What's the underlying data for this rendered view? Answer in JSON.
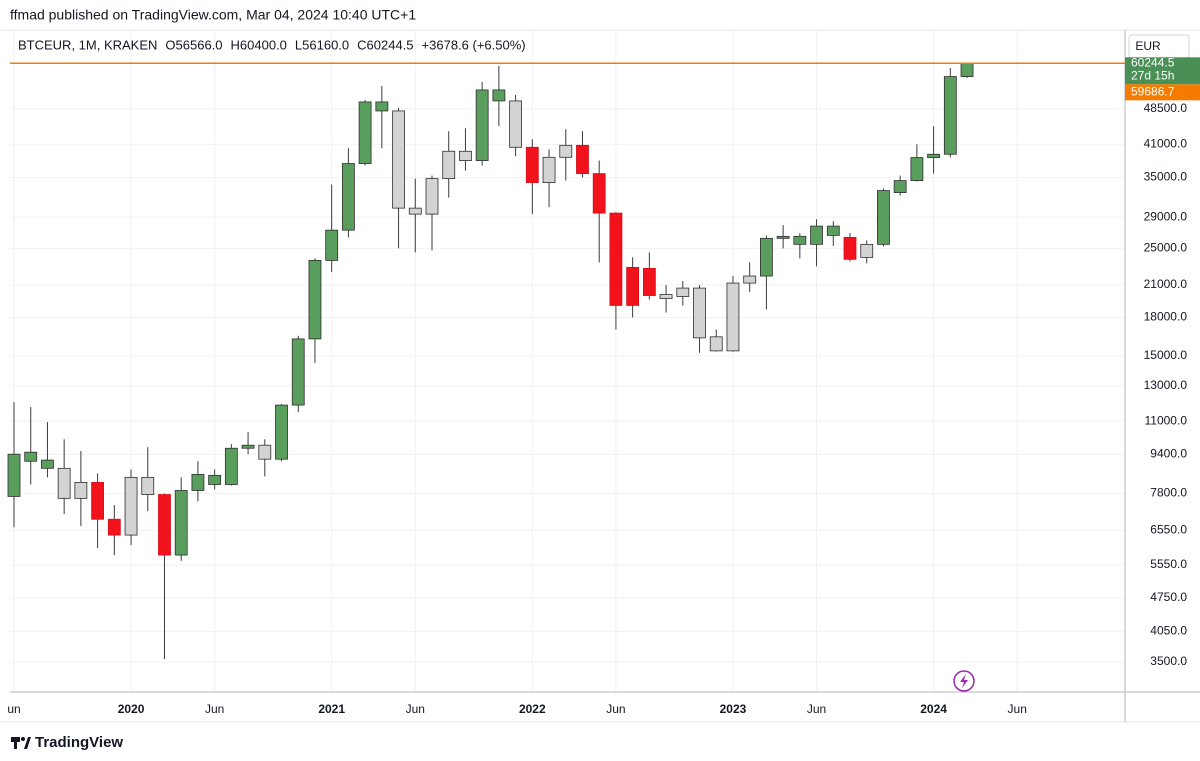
{
  "header": "ffmad published on TradingView.com, Mar 04, 2024 10:40 UTC+1",
  "footer": "TradingView",
  "currency": "EUR",
  "chart_data": {
    "type": "candlestick",
    "legend": [
      "BTCEUR, 1M, KRAKEN",
      "O56566.0",
      "H60400.0",
      "L56160.0",
      "C60244.5",
      "+3678.6 (+6.50%)"
    ],
    "log_scale": true,
    "grid": true,
    "last_price": {
      "value": 60244.5,
      "label": "60244.5",
      "color": "#f57c00"
    },
    "countdown": "27d 15h",
    "marker": {
      "value": 59686.7,
      "label": "59686.7"
    },
    "categories": [
      "2019-06",
      "2019-07",
      "2019-08",
      "2019-09",
      "2019-10",
      "2019-11",
      "2019-12",
      "2020-01",
      "2020-02",
      "2020-03",
      "2020-04",
      "2020-05",
      "2020-06",
      "2020-07",
      "2020-08",
      "2020-09",
      "2020-10",
      "2020-11",
      "2020-12",
      "2021-01",
      "2021-02",
      "2021-03",
      "2021-04",
      "2021-05",
      "2021-06",
      "2021-07",
      "2021-08",
      "2021-09",
      "2021-10",
      "2021-11",
      "2021-12",
      "2022-01",
      "2022-02",
      "2022-03",
      "2022-04",
      "2022-05",
      "2022-06",
      "2022-07",
      "2022-08",
      "2022-09",
      "2022-10",
      "2022-11",
      "2022-12",
      "2023-01",
      "2023-02",
      "2023-03",
      "2023-04",
      "2023-05",
      "2023-06",
      "2023-07",
      "2023-08",
      "2023-09",
      "2023-10",
      "2023-11",
      "2023-12",
      "2024-01",
      "2024-02",
      "2024-03"
    ],
    "open": [
      7690,
      9090,
      8790,
      8790,
      7620,
      8220,
      6900,
      6400,
      8420,
      7760,
      5820,
      7910,
      8140,
      8140,
      9670,
      9810,
      9180,
      11870,
      16260,
      23610,
      27260,
      37410,
      48040,
      48040,
      30270,
      29420,
      34830,
      39660,
      37950,
      50380,
      50380,
      40420,
      34180,
      38540,
      40800,
      35670,
      29560,
      22840,
      22730,
      20080,
      19890,
      20700,
      16420,
      15360,
      21200,
      21920,
      26220,
      25480,
      25480,
      26590,
      26340,
      23950,
      25480,
      32590,
      34500,
      38490,
      39100,
      56566
    ],
    "high": [
      12040,
      11760,
      10950,
      10090,
      9540,
      8580,
      7380,
      8740,
      9720,
      7800,
      8420,
      9090,
      8740,
      9860,
      10440,
      10090,
      11930,
      16500,
      23840,
      33860,
      40230,
      50620,
      54100,
      48730,
      34830,
      35340,
      43610,
      44240,
      55140,
      59500,
      51840,
      41980,
      40040,
      44030,
      43610,
      37950,
      29700,
      23950,
      24530,
      21000,
      21400,
      21000,
      17000,
      21920,
      23390,
      26590,
      27920,
      26880,
      28720,
      28450,
      26880,
      25970,
      33220,
      35340,
      41000,
      44660,
      58900,
      60400
    ],
    "low": [
      6640,
      8140,
      8420,
      7070,
      6680,
      6020,
      5820,
      6100,
      7170,
      3550,
      5660,
      7510,
      7950,
      8100,
      9400,
      8460,
      9090,
      11480,
      14510,
      22340,
      26340,
      37050,
      40230,
      25000,
      24530,
      24760,
      31830,
      36180,
      37050,
      44730,
      38730,
      29420,
      30410,
      34500,
      35000,
      23390,
      17000,
      18000,
      19610,
      18430,
      19060,
      15220,
      15300,
      15300,
      20310,
      18700,
      25000,
      23840,
      22950,
      25300,
      23500,
      23280,
      25240,
      32130,
      34340,
      35670,
      38540,
      56160
    ],
    "close": [
      9400,
      9490,
      9140,
      7620,
      8220,
      6900,
      6400,
      8420,
      7760,
      5820,
      7910,
      8540,
      8500,
      9670,
      9810,
      9180,
      11870,
      16260,
      23610,
      27260,
      37410,
      50140,
      50140,
      30270,
      29420,
      34830,
      39660,
      37950,
      53080,
      53080,
      40420,
      34180,
      38540,
      40800,
      35670,
      29560,
      19060,
      19060,
      19980,
      19700,
      20700,
      16340,
      15360,
      21200,
      21920,
      26220,
      26470,
      26470,
      27790,
      27790,
      23730,
      25480,
      32900,
      34500,
      38490,
      39100,
      56566,
      60244.5
    ],
    "colors": [
      "#5a9e5e",
      "#5a9e5e",
      "#5a9e5e",
      "#d3d3d3",
      "#d3d3d3",
      "#f2121c",
      "#f2121c",
      "#d3d3d3",
      "#d3d3d3",
      "#f2121c",
      "#5a9e5e",
      "#5a9e5e",
      "#5a9e5e",
      "#5a9e5e",
      "#5a9e5e",
      "#d3d3d3",
      "#5a9e5e",
      "#5a9e5e",
      "#5a9e5e",
      "#5a9e5e",
      "#5a9e5e",
      "#5a9e5e",
      "#5a9e5e",
      "#d3d3d3",
      "#d3d3d3",
      "#d3d3d3",
      "#d3d3d3",
      "#d3d3d3",
      "#5a9e5e",
      "#5a9e5e",
      "#d3d3d3",
      "#f2121c",
      "#d3d3d3",
      "#d3d3d3",
      "#f2121c",
      "#f2121c",
      "#f2121c",
      "#f2121c",
      "#f2121c",
      "#d3d3d3",
      "#d3d3d3",
      "#d3d3d3",
      "#d3d3d3",
      "#d3d3d3",
      "#d3d3d3",
      "#5a9e5e",
      "#5a9e5e",
      "#5a9e5e",
      "#5a9e5e",
      "#5a9e5e",
      "#f2121c",
      "#d3d3d3",
      "#5a9e5e",
      "#5a9e5e",
      "#5a9e5e",
      "#5a9e5e",
      "#5a9e5e",
      "#5a9e5e"
    ],
    "ylim": [
      3036,
      67300
    ],
    "yticks": [
      {
        "value": 3500,
        "label": "3500.0"
      },
      {
        "value": 4050,
        "label": "4050.0"
      },
      {
        "value": 4750,
        "label": "4750.0"
      },
      {
        "value": 5550,
        "label": "5550.0"
      },
      {
        "value": 6550,
        "label": "6550.0"
      },
      {
        "value": 7800,
        "label": "7800.0"
      },
      {
        "value": 9400,
        "label": "9400.0"
      },
      {
        "value": 11000,
        "label": "11000.0"
      },
      {
        "value": 13000,
        "label": "13000.0"
      },
      {
        "value": 15000,
        "label": "15000.0"
      },
      {
        "value": 18000,
        "label": "18000.0"
      },
      {
        "value": 21000,
        "label": "21000.0"
      },
      {
        "value": 25000,
        "label": "25000.0"
      },
      {
        "value": 29000,
        "label": "29000.0"
      },
      {
        "value": 35000,
        "label": "35000.0"
      },
      {
        "value": 41000,
        "label": "41000.0"
      },
      {
        "value": 48500,
        "label": "48500.0"
      }
    ],
    "xticks": [
      {
        "value": "2019-06",
        "label": "un"
      },
      {
        "value": "2020-01",
        "label": "2020"
      },
      {
        "value": "2020-06",
        "label": "Jun"
      },
      {
        "value": "2021-01",
        "label": "2021"
      },
      {
        "value": "2021-06",
        "label": "Jun"
      },
      {
        "value": "2022-01",
        "label": "2022"
      },
      {
        "value": "2022-06",
        "label": "Jun"
      },
      {
        "value": "2023-01",
        "label": "2023"
      },
      {
        "value": "2023-06",
        "label": "Jun"
      },
      {
        "value": "2024-01",
        "label": "2024"
      },
      {
        "value": "2024-06",
        "label": "Jun"
      }
    ]
  }
}
